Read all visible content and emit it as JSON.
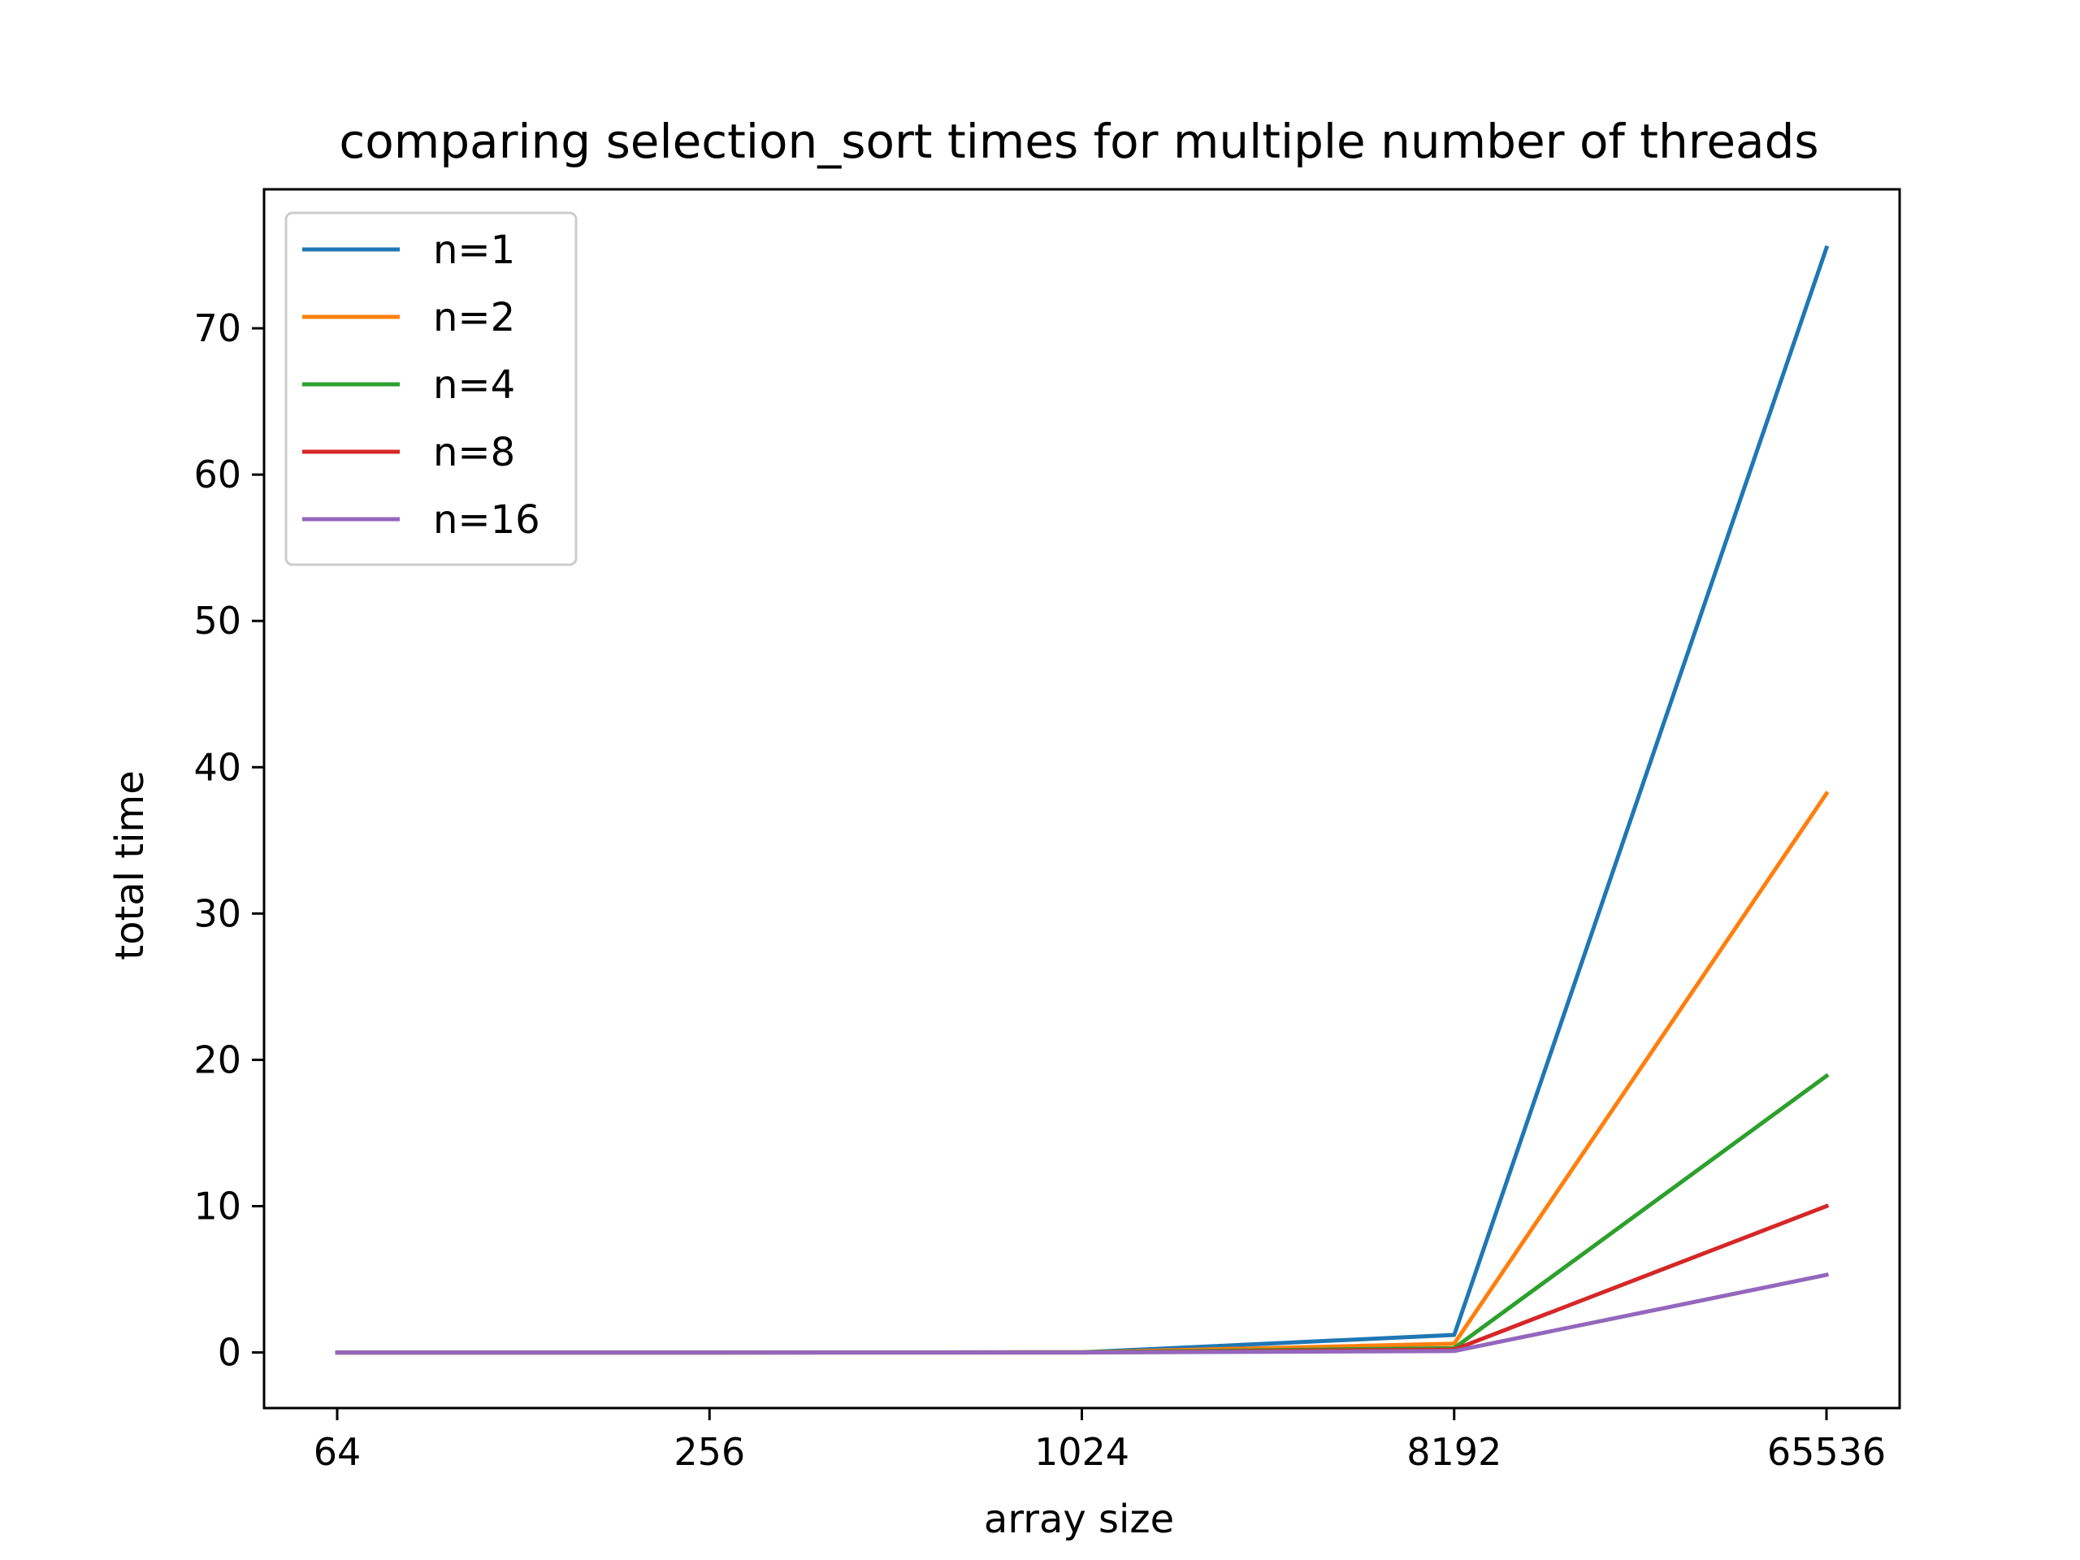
{
  "chart_data": {
    "type": "line",
    "title": "comparing selection_sort times for multiple number of threads",
    "xlabel": "array size",
    "ylabel": "total time",
    "categories": [
      "64",
      "256",
      "1024",
      "8192",
      "65536"
    ],
    "ylim": [
      -3.8,
      79.5
    ],
    "yticks": [
      0,
      10,
      20,
      30,
      40,
      50,
      60,
      70
    ],
    "grid": false,
    "legend_position": "top-left",
    "series": [
      {
        "name": "n=1",
        "color": "#1f77b4",
        "values": [
          0.0,
          0.0,
          0.01,
          1.2,
          75.5
        ]
      },
      {
        "name": "n=2",
        "color": "#ff7f0e",
        "values": [
          0.0,
          0.0,
          0.01,
          0.6,
          38.2
        ]
      },
      {
        "name": "n=4",
        "color": "#2ca02c",
        "values": [
          0.0,
          0.0,
          0.01,
          0.3,
          18.9
        ]
      },
      {
        "name": "n=8",
        "color": "#d62728",
        "values": [
          0.0,
          0.0,
          0.0,
          0.2,
          10.0
        ]
      },
      {
        "name": "n=16",
        "color": "#9467bd",
        "values": [
          0.0,
          0.0,
          0.0,
          0.1,
          5.3
        ]
      }
    ]
  }
}
